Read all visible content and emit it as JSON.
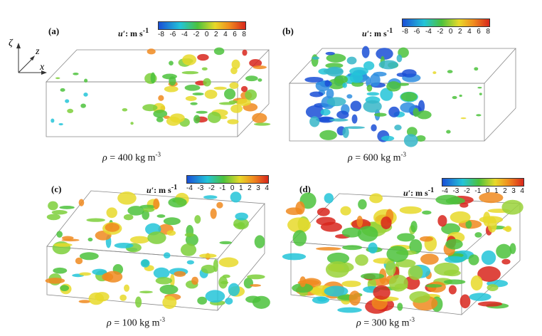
{
  "axes": {
    "zeta": "ζ",
    "z": "z",
    "x": "x"
  },
  "colors": {
    "neg": "#1a4fd6",
    "cyan": "#23c4d8",
    "green": "#4cc23c",
    "yellow": "#e8d92a",
    "orange": "#f08a1e",
    "red": "#d8261c"
  },
  "panels": [
    {
      "label": "(a)",
      "cbar_title": "u′",
      "cbar_unit": ": m s",
      "cbar_sup": "-1",
      "ticks": [
        "-8",
        "-6",
        "-4",
        "-2",
        "0",
        "2",
        "4",
        "6",
        "8"
      ],
      "caption_rho": "ρ",
      "caption_text": " = 400 kg m",
      "caption_sup": "-3"
    },
    {
      "label": "(b)",
      "cbar_title": "u′",
      "cbar_unit": ": m s",
      "cbar_sup": "-1",
      "ticks": [
        "-8",
        "-6",
        "-4",
        "-2",
        "0",
        "2",
        "4",
        "6",
        "8"
      ],
      "caption_rho": "ρ",
      "caption_text": " = 600 kg m",
      "caption_sup": "-3"
    },
    {
      "label": "(c)",
      "cbar_title": "u′",
      "cbar_unit": ": m s",
      "cbar_sup": "-1",
      "ticks": [
        "-4",
        "-3",
        "-2",
        "-1",
        "0",
        "1",
        "2",
        "3",
        "4"
      ],
      "caption_rho": "ρ",
      "caption_text": " = 100 kg m",
      "caption_sup": "-3"
    },
    {
      "label": "(d)",
      "cbar_title": "u′",
      "cbar_unit": ": m s",
      "cbar_sup": "-1",
      "ticks": [
        "-4",
        "-3",
        "-2",
        "-1",
        "0",
        "1",
        "2",
        "3",
        "4"
      ],
      "caption_rho": "ρ",
      "caption_text": " = 300 kg m",
      "caption_sup": "-3"
    }
  ]
}
